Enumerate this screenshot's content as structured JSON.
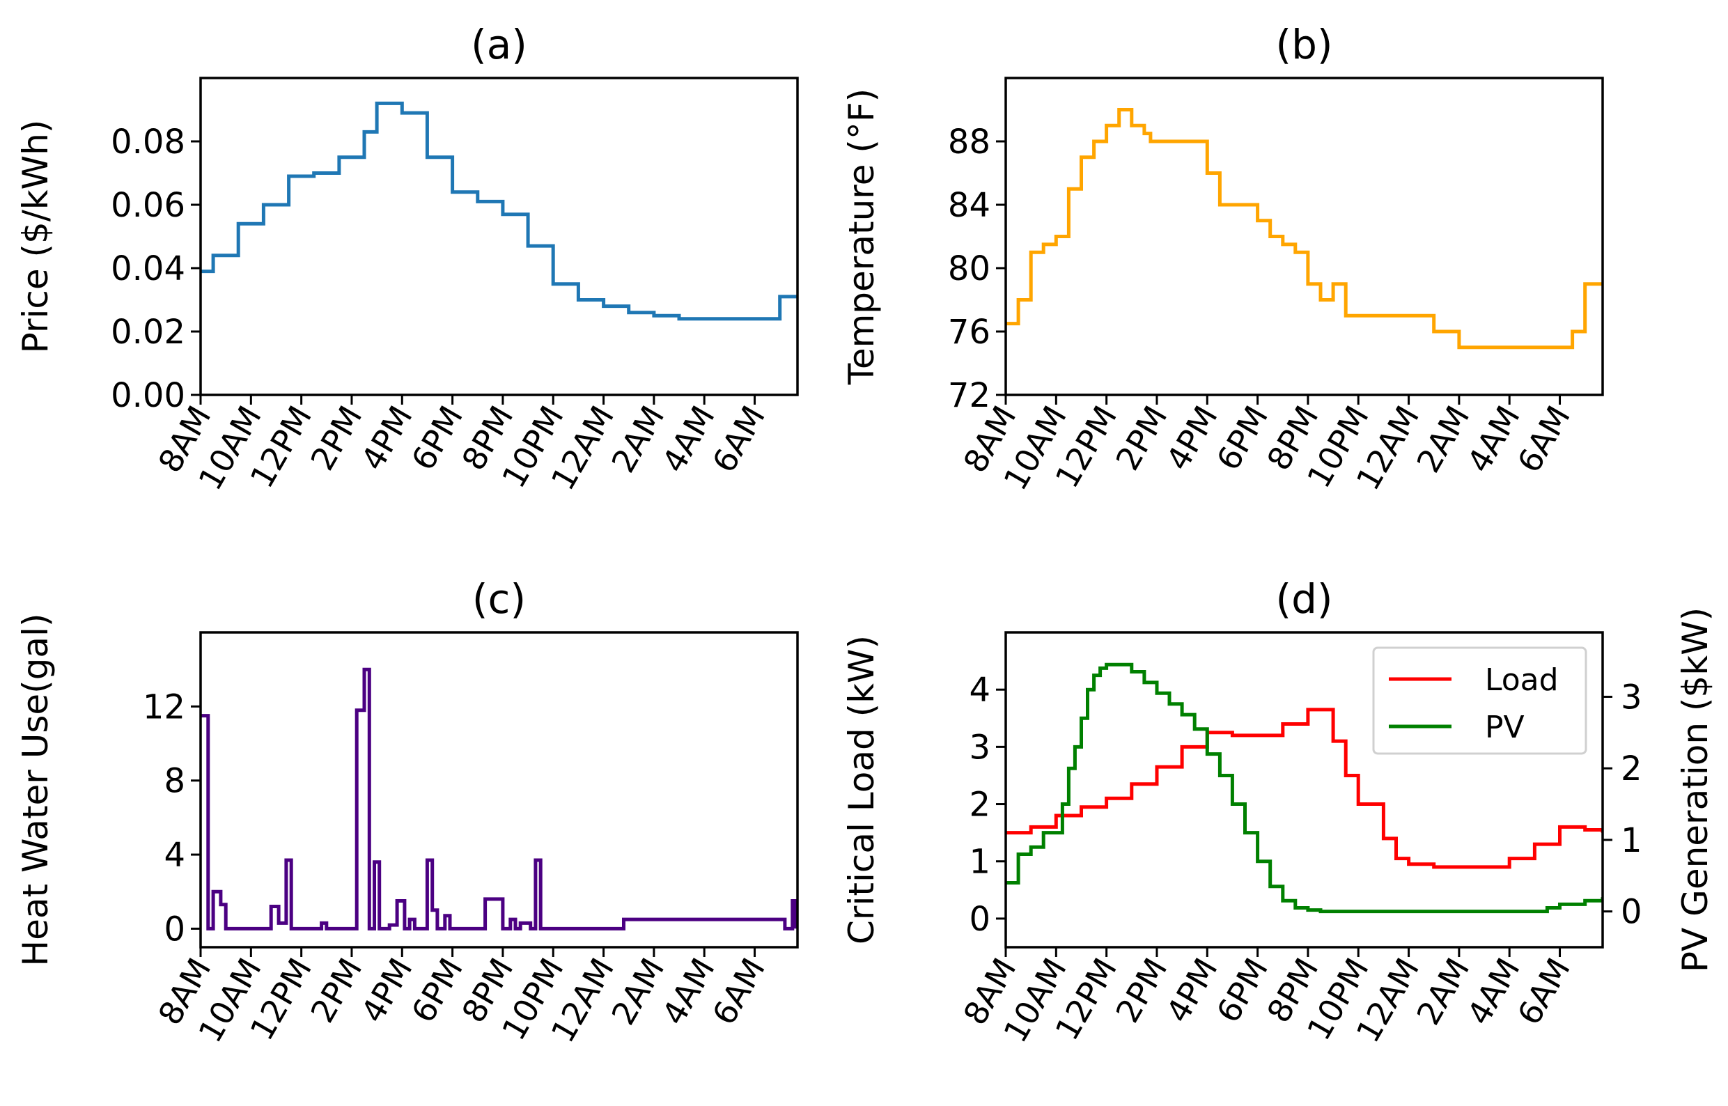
{
  "chart_data": [
    {
      "type": "line",
      "step": true,
      "title": "(a)",
      "xlabel": "",
      "ylabel": "Price ($/kWh)",
      "x_ticks": [
        "8AM",
        "10AM",
        "12PM",
        "2PM",
        "4PM",
        "6PM",
        "8PM",
        "10PM",
        "12AM",
        "2AM",
        "4AM",
        "6AM"
      ],
      "xlim": [
        0,
        23.7
      ],
      "ylim": [
        0,
        0.1
      ],
      "y_ticks": [
        "0.00",
        "0.02",
        "0.04",
        "0.06",
        "0.08"
      ],
      "y_tick_values": [
        0,
        0.02,
        0.04,
        0.06,
        0.08
      ],
      "color": "#1f77b4",
      "series": [
        {
          "x": [
            0,
            0.5,
            1.5,
            2.5,
            3.5,
            4.5,
            5.5,
            6.5,
            7,
            8,
            9,
            10,
            11,
            12,
            13,
            14,
            15,
            16,
            17,
            18,
            19,
            20,
            21,
            22,
            23,
            23.7
          ],
          "values": [
            0.039,
            0.044,
            0.054,
            0.06,
            0.069,
            0.07,
            0.075,
            0.083,
            0.092,
            0.089,
            0.075,
            0.064,
            0.061,
            0.057,
            0.047,
            0.035,
            0.03,
            0.028,
            0.026,
            0.025,
            0.024,
            0.024,
            0.024,
            0.024,
            0.031,
            0.031
          ]
        }
      ]
    },
    {
      "type": "line",
      "step": true,
      "title": "(b)",
      "xlabel": "",
      "ylabel": "Temperature ($^\\circ$F)",
      "ylabel_display": "Temperature (°F)",
      "x_ticks": [
        "8AM",
        "10AM",
        "12PM",
        "2PM",
        "4PM",
        "6PM",
        "8PM",
        "10PM",
        "12AM",
        "2AM",
        "4AM",
        "6AM"
      ],
      "xlim": [
        0,
        23.7
      ],
      "ylim": [
        72,
        92
      ],
      "y_ticks": [
        "72",
        "76",
        "80",
        "84",
        "88"
      ],
      "y_tick_values": [
        72,
        76,
        80,
        84,
        88
      ],
      "color": "#ffa500",
      "series": [
        {
          "x": [
            0,
            0.5,
            1,
            1.5,
            2,
            2.5,
            3,
            3.5,
            4,
            4.5,
            5,
            5.5,
            5.75,
            6,
            6.5,
            7,
            7.5,
            8,
            8.5,
            9,
            9.5,
            10,
            10.5,
            11,
            11.5,
            12,
            12.5,
            13,
            13.5,
            14,
            14.5,
            15,
            16,
            17,
            18,
            19,
            20,
            21,
            22,
            22.5,
            23,
            23.7
          ],
          "values": [
            76.5,
            78,
            81,
            81.5,
            82,
            85,
            87,
            88,
            89,
            90,
            89,
            88.5,
            88,
            88,
            88,
            88,
            88,
            86,
            84,
            84,
            84,
            83,
            82,
            81.5,
            81,
            79,
            78,
            79,
            77,
            77,
            77,
            77,
            77,
            76,
            75,
            75,
            75,
            75,
            75,
            76,
            79,
            79
          ]
        }
      ]
    },
    {
      "type": "line",
      "step": true,
      "title": "(c)",
      "xlabel": "",
      "ylabel": "Heat Water Use(gal)",
      "x_ticks": [
        "8AM",
        "10AM",
        "12PM",
        "2PM",
        "4PM",
        "6PM",
        "8PM",
        "10PM",
        "12AM",
        "2AM",
        "4AM",
        "6AM"
      ],
      "xlim": [
        0,
        23.7
      ],
      "ylim": [
        -1,
        16
      ],
      "y_ticks": [
        "0",
        "4",
        "8",
        "12"
      ],
      "y_tick_values": [
        0,
        4,
        8,
        12
      ],
      "color": "#4b0082",
      "series": [
        {
          "x": [
            0,
            0.3,
            0.5,
            0.8,
            1,
            1.1,
            2.8,
            3.1,
            3.4,
            3.6,
            3.9,
            4.8,
            5,
            6.2,
            6.5,
            6.7,
            6.9,
            7.1,
            7.5,
            7.8,
            8.1,
            8.3,
            8.5,
            9,
            9.2,
            9.4,
            9.7,
            9.9,
            11,
            11.3,
            12,
            12.3,
            12.5,
            12.7,
            13.1,
            13.3,
            13.5,
            16.5,
            16.8,
            23.2,
            23.5,
            23.6,
            23.7
          ],
          "values": [
            11.5,
            0,
            2,
            1.3,
            0,
            0,
            1.2,
            0.3,
            3.7,
            0,
            0,
            0.3,
            0,
            11.8,
            14,
            0,
            3.6,
            0,
            0.2,
            1.5,
            0,
            0.5,
            0,
            3.7,
            1,
            0,
            0.7,
            0,
            0,
            1.6,
            0,
            0.5,
            0,
            0.3,
            0,
            3.7,
            0,
            0,
            0.5,
            0,
            1.5,
            0.1,
            0
          ]
        }
      ]
    },
    {
      "type": "line",
      "title": "(d)",
      "xlabel": "",
      "ylabel": "Critical Load (kW)",
      "y2label": "PV Generation ($kW)",
      "x_ticks": [
        "8AM",
        "10AM",
        "12PM",
        "2PM",
        "4PM",
        "6PM",
        "8PM",
        "10PM",
        "12AM",
        "2AM",
        "4AM",
        "6AM"
      ],
      "xlim": [
        0,
        23.7
      ],
      "ylim": [
        -0.5,
        5
      ],
      "y_ticks": [
        "0",
        "1",
        "2",
        "3",
        "4"
      ],
      "y_tick_values": [
        0,
        1,
        2,
        3,
        4
      ],
      "y2lim": [
        -0.5,
        3.9
      ],
      "y2_ticks": [
        "0",
        "1",
        "2",
        "3"
      ],
      "y2_tick_values": [
        0,
        1,
        2,
        3
      ],
      "legend": {
        "placement": "top-right"
      },
      "series": [
        {
          "name": "Load",
          "axis": "left",
          "color": "#ff0000",
          "step": true,
          "x": [
            0,
            1,
            2,
            3,
            4,
            5,
            6,
            7,
            8,
            8.5,
            9,
            10,
            11,
            12,
            13,
            13.5,
            14,
            15,
            15.5,
            16,
            17,
            18,
            19,
            20,
            21,
            22,
            22.5,
            23,
            23.7
          ],
          "values": [
            1.5,
            1.6,
            1.8,
            1.95,
            2.1,
            2.35,
            2.65,
            3.0,
            3.25,
            3.25,
            3.2,
            3.2,
            3.4,
            3.65,
            3.1,
            2.5,
            2.0,
            1.4,
            1.05,
            0.95,
            0.9,
            0.9,
            0.9,
            1.05,
            1.3,
            1.6,
            1.6,
            1.55,
            1.5
          ]
        },
        {
          "name": "PV",
          "axis": "right",
          "color": "#008000",
          "step": true,
          "x": [
            0,
            0.5,
            1,
            1.5,
            2,
            2.25,
            2.5,
            2.75,
            3,
            3.25,
            3.5,
            3.75,
            4,
            4.5,
            5,
            5.5,
            6,
            6.5,
            7,
            7.5,
            8,
            8.5,
            9,
            9.5,
            10,
            10.5,
            11,
            11.5,
            12,
            12.5,
            13,
            14,
            16,
            18,
            20,
            21,
            21.5,
            22,
            23,
            23.7
          ],
          "values": [
            0.4,
            0.8,
            0.9,
            1.1,
            1.1,
            1.5,
            2.0,
            2.3,
            2.7,
            3.1,
            3.3,
            3.4,
            3.45,
            3.45,
            3.35,
            3.2,
            3.05,
            2.9,
            2.75,
            2.55,
            2.2,
            1.9,
            1.5,
            1.1,
            0.7,
            0.35,
            0.15,
            0.05,
            0.02,
            0,
            0,
            0,
            0,
            0,
            0,
            0,
            0.05,
            0.1,
            0.15,
            0.2
          ]
        }
      ]
    }
  ]
}
